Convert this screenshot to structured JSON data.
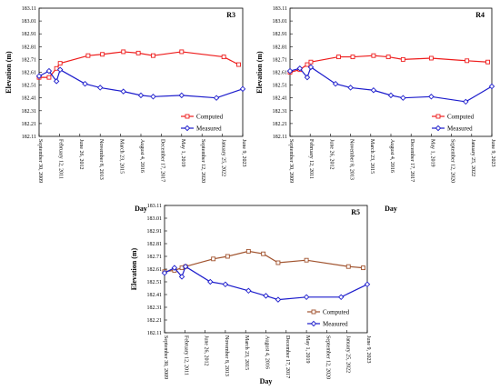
{
  "chart_data": [
    {
      "type": "line",
      "title": "R3",
      "xlabel": "Day",
      "ylabel": "Elevation (m)",
      "ylim": [
        182.11,
        183.11
      ],
      "yticks": [
        "183.11",
        "183.01",
        "182.91",
        "182.81",
        "182.71",
        "182.61",
        "182.51",
        "182.41",
        "182.31",
        "182.21",
        "182.11"
      ],
      "xticks": [
        "September 30, 2009",
        "February 12, 2011",
        "June 26, 2012",
        "November 8, 2013",
        "March 23, 2015",
        "August 4, 2016",
        "December 17, 2017",
        "May 1, 2019",
        "September 12, 2020",
        "January 25, 2022",
        "June 9, 2023"
      ],
      "xlim": [
        "2009-09-30",
        "2023-06-09"
      ],
      "grid": false,
      "legend_position": "bottom-right",
      "series": [
        {
          "name": "Computed",
          "color": "#ee1c1c",
          "marker": "square",
          "x": [
            "2009-09-30",
            "2010-06-01",
            "2010-12-01",
            "2011-03-01",
            "2013-01-15",
            "2014-01-01",
            "2015-06-01",
            "2016-06-01",
            "2017-06-01",
            "2019-05-01",
            "2022-03-01",
            "2023-03-01"
          ],
          "y": [
            182.57,
            182.57,
            182.64,
            182.68,
            182.74,
            182.75,
            182.77,
            182.76,
            182.74,
            182.77,
            182.73,
            182.67
          ]
        },
        {
          "name": "Measured",
          "color": "#1c1ccc",
          "marker": "diamond",
          "x": [
            "2009-09-30",
            "2010-06-01",
            "2010-12-01",
            "2011-03-01",
            "2012-11-01",
            "2013-11-08",
            "2015-06-01",
            "2016-08-04",
            "2017-06-01",
            "2019-05-01",
            "2021-09-01",
            "2023-06-09"
          ],
          "y": [
            182.58,
            182.62,
            182.54,
            182.63,
            182.52,
            182.49,
            182.46,
            182.43,
            182.42,
            182.43,
            182.41,
            182.48
          ]
        }
      ]
    },
    {
      "type": "line",
      "title": "R4",
      "xlabel": "Day",
      "ylabel": "Elevation (m)",
      "ylim": [
        182.11,
        183.11
      ],
      "yticks": [
        "183.11",
        "183.01",
        "182.91",
        "182.81",
        "182.71",
        "182.61",
        "182.51",
        "182.41",
        "182.31",
        "182.21",
        "182.11"
      ],
      "xticks": [
        "September 30, 2009",
        "February 12, 2011",
        "June 26, 2012",
        "November 8, 2013",
        "March 23, 2015",
        "August 4, 2016",
        "December 17, 2017",
        "May 1, 2019",
        "September 12, 2020",
        "January 25, 2022",
        "June 9, 2023"
      ],
      "xlim": [
        "2009-09-30",
        "2023-06-09"
      ],
      "grid": false,
      "legend_position": "bottom-right",
      "series": [
        {
          "name": "Computed",
          "color": "#ee1c1c",
          "marker": "square",
          "x": [
            "2009-09-30",
            "2010-06-01",
            "2010-12-01",
            "2011-03-01",
            "2013-01-15",
            "2014-01-01",
            "2015-06-01",
            "2016-06-01",
            "2017-06-01",
            "2019-05-01",
            "2021-10-01",
            "2023-03-01"
          ],
          "y": [
            182.61,
            182.63,
            182.67,
            182.69,
            182.73,
            182.73,
            182.74,
            182.73,
            182.71,
            182.72,
            182.7,
            182.69
          ]
        },
        {
          "name": "Measured",
          "color": "#1c1ccc",
          "marker": "diamond",
          "x": [
            "2009-09-30",
            "2010-06-01",
            "2010-12-01",
            "2011-03-01",
            "2012-11-01",
            "2013-11-08",
            "2015-06-01",
            "2016-08-04",
            "2017-06-01",
            "2019-05-01",
            "2021-09-01",
            "2023-06-09"
          ],
          "y": [
            182.62,
            182.64,
            182.57,
            182.65,
            182.52,
            182.49,
            182.47,
            182.43,
            182.41,
            182.42,
            182.38,
            182.5
          ]
        }
      ]
    },
    {
      "type": "line",
      "title": "R5",
      "xlabel": "Day",
      "ylabel": "Elevation (m)",
      "ylim": [
        182.11,
        183.11
      ],
      "yticks": [
        "183.11",
        "183.01",
        "182.91",
        "182.81",
        "182.71",
        "182.61",
        "182.51",
        "182.41",
        "182.31",
        "182.21",
        "182.11"
      ],
      "xticks": [
        "September 30, 2009",
        "February 12, 2011",
        "June 26, 2012",
        "November 8, 2013",
        "March 23, 2015",
        "August 4, 2016",
        "December 17, 2017",
        "May 1, 2019",
        "September 12, 2020",
        "January 25, 2022",
        "June 9, 2023"
      ],
      "xlim": [
        "2009-09-30",
        "2023-06-09"
      ],
      "grid": false,
      "legend_position": "bottom-right",
      "series": [
        {
          "name": "Computed",
          "color": "#a0522d",
          "marker": "square",
          "x": [
            "2009-09-30",
            "2010-06-01",
            "2010-12-01",
            "2011-03-01",
            "2013-01-15",
            "2014-01-01",
            "2015-06-01",
            "2016-06-01",
            "2017-06-01",
            "2019-05-01",
            "2022-03-01",
            "2023-03-01"
          ],
          "y": [
            182.59,
            182.6,
            182.62,
            182.63,
            182.69,
            182.71,
            182.75,
            182.73,
            182.66,
            182.68,
            182.63,
            182.62
          ]
        },
        {
          "name": "Measured",
          "color": "#1c1ccc",
          "marker": "diamond",
          "x": [
            "2009-09-30",
            "2010-06-01",
            "2010-12-01",
            "2011-03-01",
            "2012-11-01",
            "2013-11-08",
            "2015-06-01",
            "2016-08-04",
            "2017-06-01",
            "2019-05-01",
            "2021-09-01",
            "2023-06-09"
          ],
          "y": [
            182.58,
            182.62,
            182.55,
            182.63,
            182.51,
            182.49,
            182.44,
            182.4,
            182.37,
            182.39,
            182.39,
            182.49
          ]
        }
      ]
    }
  ]
}
